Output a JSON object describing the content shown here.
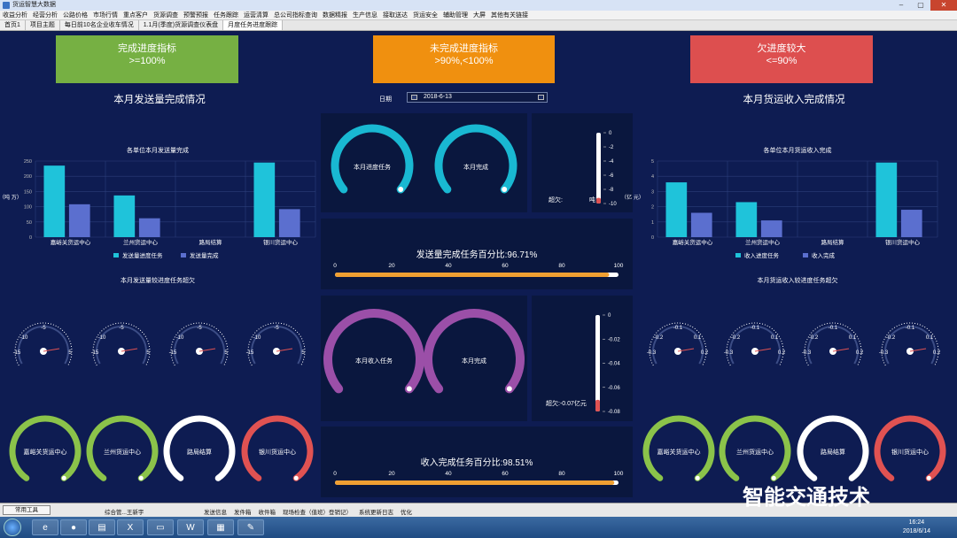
{
  "window": {
    "title": "货运智慧大数据"
  },
  "menu": [
    "收益分析",
    "经营分析",
    "公路价格",
    "市场行情",
    "重点客户",
    "货源调查",
    "预警预报",
    "任务跟踪",
    "运营清算",
    "总公司指标查询",
    "数据精报",
    "生产信息",
    "接取送达",
    "货运安全",
    "辅助管理",
    "大屏",
    "其他有关链接"
  ],
  "tabs": [
    "首页1",
    "项目主题",
    "每日前10名企业收车情况",
    "1.1月(季度)货源调查仪表盘",
    "月度任务进度跟踪"
  ],
  "legend_cards": [
    {
      "title": "完成进度指标",
      "range": ">=100%",
      "color": "#76b043"
    },
    {
      "title": "未完成进度指标",
      "range": ">90%,<100%",
      "color": "#f0900f"
    },
    {
      "title": "欠进度较大",
      "range": "<=90%",
      "color": "#dd4f4f"
    }
  ],
  "headers": {
    "left": "本月发送量完成情况",
    "right": "本月货运收入完成情况",
    "date_label": "日期",
    "date_value": "2018-6-13"
  },
  "center": {
    "gauge1_label": "本月进度任务",
    "gauge2_label": "本月完成",
    "therm1": {
      "label": "超欠:",
      "ticks": [
        "0",
        "-2",
        "-4",
        "-6",
        "-8",
        "-10"
      ],
      "unit": "吨"
    },
    "progress1": {
      "title": "发送量完成任务百分比:96.71%",
      "value": 96.71
    },
    "gauge3_label": "本月收入任务",
    "gauge4_label": "本月完成",
    "therm2": {
      "label": "超欠:-0.07亿元",
      "ticks": [
        "0",
        "-0.02",
        "-0.04",
        "-0.06",
        "-0.08"
      ]
    },
    "progress2": {
      "title": "收入完成任务百分比:98.51%",
      "value": 98.51
    },
    "ticks": [
      "0",
      "20",
      "40",
      "60",
      "80",
      "100"
    ]
  },
  "left_chart_title": "各单位本月发送量完成",
  "right_chart_title": "各单位本月货运收入完成",
  "chart_data": [
    {
      "type": "bar",
      "title": "各单位本月发送量完成",
      "ylabel": "（吨 万）",
      "categories": [
        "嘉峪关货运中心",
        "兰州货运中心",
        "路局结算",
        "银川货运中心"
      ],
      "yticks": [
        "0",
        "50",
        "100",
        "150",
        "200",
        "250"
      ],
      "ylim": [
        0,
        250
      ],
      "series": [
        {
          "name": "发送量进度任务",
          "color": "#1fc3da",
          "values": [
            235,
            137,
            0,
            245
          ]
        },
        {
          "name": "发送量完成",
          "color": "#5b6fcf",
          "values": [
            108,
            62,
            0,
            92
          ]
        }
      ]
    },
    {
      "type": "bar",
      "title": "各单位本月货运收入完成",
      "ylabel": "（亿 元）",
      "categories": [
        "嘉峪关货运中心",
        "兰州货运中心",
        "路局结算",
        "银川货运中心"
      ],
      "yticks": [
        "0",
        "1",
        "2",
        "3",
        "4",
        "5"
      ],
      "ylim": [
        0,
        5
      ],
      "series": [
        {
          "name": "收入进度任务",
          "color": "#1fc3da",
          "values": [
            3.6,
            2.3,
            0,
            4.9
          ],
          "fake": 0
        },
        {
          "name": "收入完成",
          "color": "#5b6fcf",
          "values": [
            1.6,
            1.1,
            0,
            1.8
          ]
        }
      ]
    }
  ],
  "left_small_title": "本月发送量较进度任务超欠",
  "right_small_title": "本月货运收入较进度任务超欠",
  "left_small_gauges": {
    "top": "-5",
    "left_mid": "-10",
    "min": "-15",
    "max": "5"
  },
  "right_small_gauges": {
    "top": "-0.1",
    "left_mid": "-0.2",
    "right_mid": "0.1",
    "min": "-0.3",
    "max": "0.2"
  },
  "rings": [
    {
      "name": "嘉峪关货运中心",
      "color": "#8bc34a"
    },
    {
      "name": "兰州货运中心",
      "color": "#8bc34a"
    },
    {
      "name": "路局结算",
      "color": "#ffffff"
    },
    {
      "name": "银川货运中心",
      "color": "#e05252"
    }
  ],
  "taskbar": {
    "tools": "常用工具",
    "user": "综合管...王新宇",
    "items": [
      "发送信息",
      "发件箱",
      "收件箱",
      "现场检查（值班）登销记）",
      "系统更新日志",
      "优化"
    ],
    "time": "16:24",
    "date": "2018/6/14"
  },
  "watermark": "智能交通技术"
}
